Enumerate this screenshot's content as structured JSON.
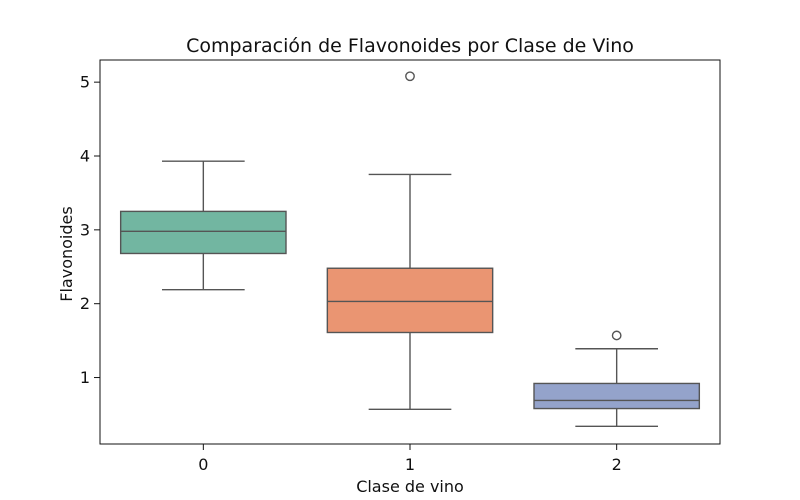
{
  "chart_data": {
    "type": "box",
    "title": "Comparación de Flavonoides por Clase de Vino",
    "xlabel": "Clase de vino",
    "ylabel": "Flavonoides",
    "categories": [
      "0",
      "1",
      "2"
    ],
    "y_ticks": [
      1,
      2,
      3,
      4,
      5
    ],
    "ylim": [
      0.1,
      5.3
    ],
    "grid": false,
    "legend": "none",
    "colors": {
      "0": "#72b6a1",
      "1": "#ea9572",
      "2": "#94a3cb",
      "stroke": "#555555",
      "axis": "#111111"
    },
    "series": [
      {
        "category": "0",
        "whisker_low": 2.19,
        "q1": 2.68,
        "median": 2.98,
        "q3": 3.25,
        "whisker_high": 3.93,
        "outliers": []
      },
      {
        "category": "1",
        "whisker_low": 0.57,
        "q1": 1.61,
        "median": 2.03,
        "q3": 2.48,
        "whisker_high": 3.75,
        "outliers": [
          5.08
        ]
      },
      {
        "category": "2",
        "whisker_low": 0.34,
        "q1": 0.58,
        "median": 0.69,
        "q3": 0.92,
        "whisker_high": 1.39,
        "outliers": [
          1.57
        ]
      }
    ]
  }
}
